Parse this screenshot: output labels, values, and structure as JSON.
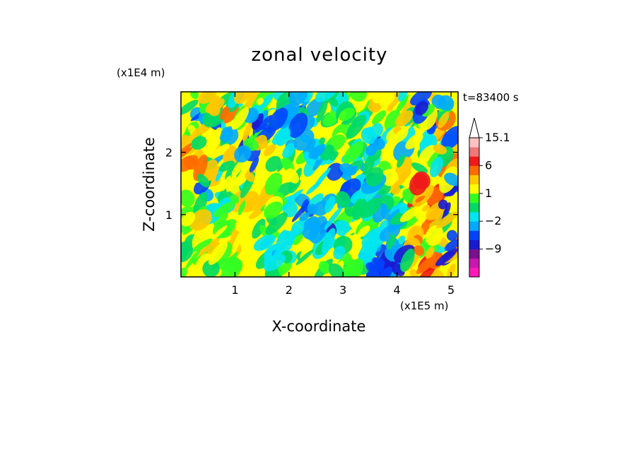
{
  "chart_data": {
    "type": "heatmap",
    "title": "zonal velocity",
    "xlabel": "X-coordinate",
    "ylabel": "Z-coordinate",
    "x_unit": "(x1E5 m)",
    "y_unit": "(x1E4 m)",
    "time_label": "t=83400 s",
    "xlim": [
      0,
      5.13
    ],
    "ylim": [
      0,
      2.97
    ],
    "x_ticks": [
      "1",
      "2",
      "3",
      "4",
      "5"
    ],
    "y_ticks": [
      "1",
      "2"
    ],
    "colorbar": {
      "levels": [
        -15,
        -12,
        -9,
        -6,
        -3,
        -2,
        -1,
        0,
        1,
        2,
        3,
        6,
        9,
        12,
        15.1
      ],
      "colors": [
        "#ff1ab8",
        "#c818b0",
        "#7a1090",
        "#1a1ad2",
        "#0044ff",
        "#00aaff",
        "#00e6f0",
        "#00d966",
        "#33ff22",
        "#ffff00",
        "#ffc800",
        "#ff6a00",
        "#ee1a1a",
        "#f07878",
        "#ffc2c2"
      ],
      "extend": "max",
      "tick_labels": [
        {
          "value": 15.1,
          "label": "15.1"
        },
        {
          "value": 6,
          "label": "6"
        },
        {
          "value": 1,
          "label": "1"
        },
        {
          "value": -2,
          "label": "−2"
        },
        {
          "value": -9,
          "label": "−9"
        }
      ]
    }
  }
}
